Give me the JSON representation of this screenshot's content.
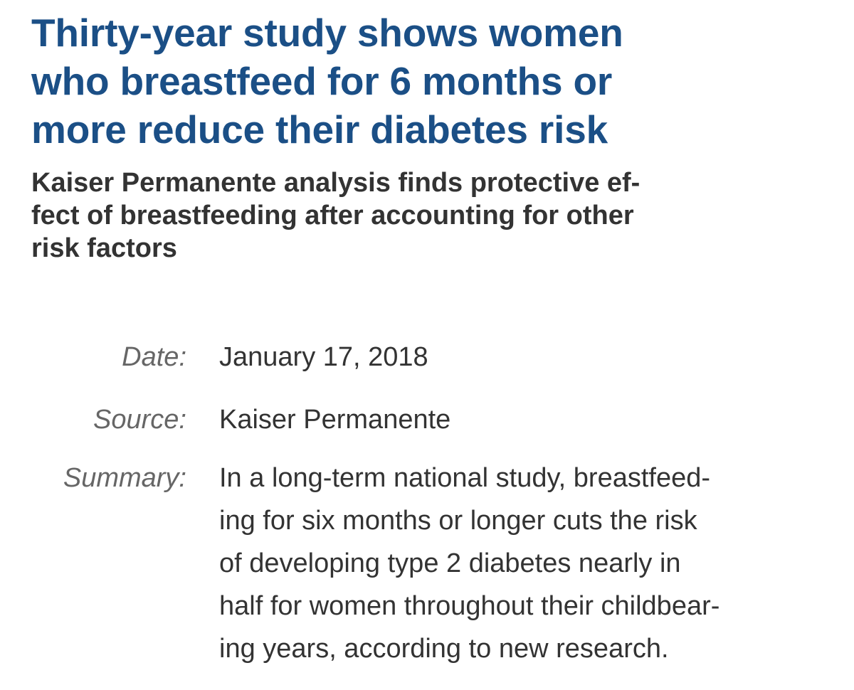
{
  "article": {
    "headline_lines": [
      "Thirty-year study shows women",
      "who breastfeed for 6 months or",
      "more reduce their diabetes risk"
    ],
    "subhead_lines": [
      "Kaiser Permanente analysis finds protective ef-",
      "fect of breastfeeding after accounting for other",
      "risk factors"
    ],
    "meta": {
      "date_label": "Date:",
      "date_value": "January 17, 2018",
      "source_label": "Source:",
      "source_value": "Kaiser Permanente",
      "summary_label": "Summary:",
      "summary_lines": [
        "In a long-term national study, breastfeed-",
        "ing for six months or longer cuts the risk",
        "of developing type 2 diabetes nearly in",
        "half for women throughout their childbear-",
        "ing years, according to new research."
      ]
    }
  },
  "colors": {
    "headline": "#1b4f86",
    "subhead": "#333333",
    "label": "#666666",
    "value": "#333333",
    "background": "#ffffff"
  }
}
